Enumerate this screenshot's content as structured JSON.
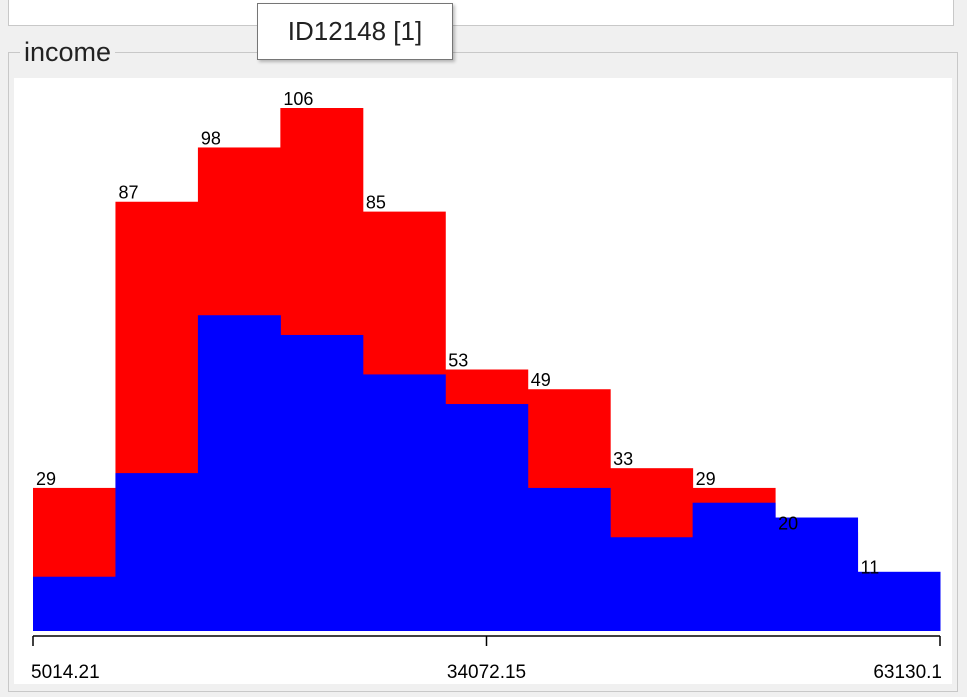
{
  "tooltip": {
    "text": "ID12148 [1]"
  },
  "panel": {
    "title": "income"
  },
  "colors": {
    "total": "#ff0000",
    "subset": "#0000ff"
  },
  "chart_data": {
    "type": "bar",
    "title": "",
    "xlabel": "",
    "ylabel": "",
    "x_tick_labels": [
      "5014.21",
      "34072.15",
      "63130.1"
    ],
    "x_range": [
      5014.21,
      63130.1
    ],
    "ylim": [
      0,
      106
    ],
    "bins": 11,
    "series": [
      {
        "name": "",
        "color": "#ff0000",
        "values": [
          29,
          87,
          98,
          106,
          85,
          53,
          49,
          33,
          29,
          20,
          11
        ]
      },
      {
        "name": "",
        "color": "#0000ff",
        "values": [
          11,
          32,
          64,
          60,
          52,
          46,
          29,
          19,
          26,
          23,
          12
        ]
      }
    ],
    "data_labels": [
      "29",
      "87",
      "98",
      "106",
      "85",
      "53",
      "49",
      "33",
      "29",
      "20",
      "11"
    ],
    "grid": false
  }
}
